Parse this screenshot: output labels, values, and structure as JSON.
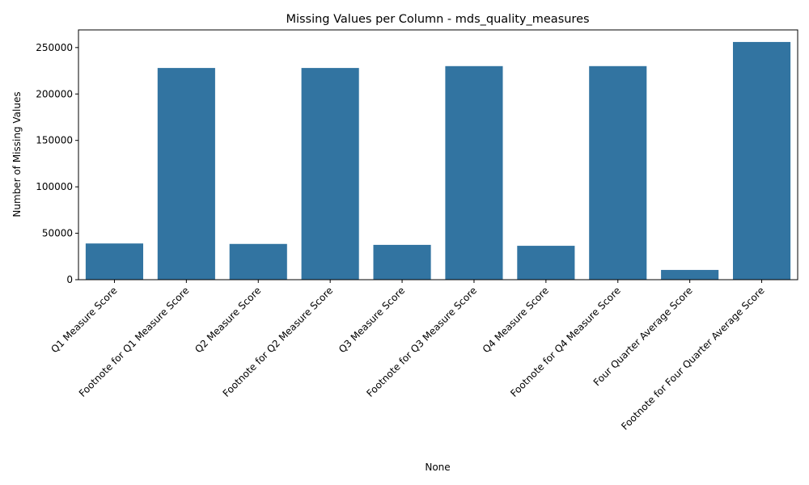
{
  "chart_data": {
    "type": "bar",
    "title": "Missing Values per Column - mds_quality_measures",
    "xlabel": "None",
    "ylabel": "Number of Missing Values",
    "categories": [
      "Q1 Measure Score",
      "Footnote for Q1 Measure Score",
      "Q2 Measure Score",
      "Footnote for Q2 Measure Score",
      "Q3 Measure Score",
      "Footnote for Q3 Measure Score",
      "Q4 Measure Score",
      "Footnote for Q4 Measure Score",
      "Four Quarter Average Score",
      "Footnote for Four Quarter Average Score"
    ],
    "values": [
      39000,
      228000,
      38500,
      228000,
      37500,
      230000,
      36500,
      230000,
      10500,
      256000
    ],
    "ylim": [
      0,
      269000
    ],
    "yticks": [
      0,
      50000,
      100000,
      150000,
      200000,
      250000
    ],
    "bar_color": "#3274a1",
    "grid": false,
    "legend": "none"
  }
}
